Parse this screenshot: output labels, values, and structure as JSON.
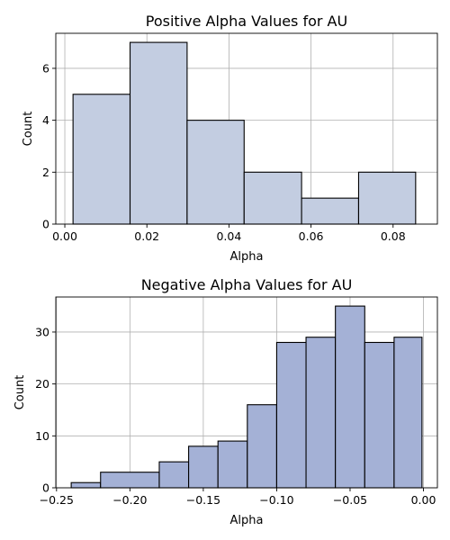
{
  "chart_data": [
    {
      "type": "histogram",
      "title": "Positive Alpha Values for AU",
      "xlabel": "Alpha",
      "ylabel": "Count",
      "xlim": [
        -0.0022,
        0.0908
      ],
      "ylim": [
        0,
        7.35
      ],
      "xticks": [
        "0.00",
        "0.02",
        "0.04",
        "0.06",
        "0.08"
      ],
      "xtick_values": [
        0.0,
        0.02,
        0.04,
        0.06,
        0.08
      ],
      "yticks": [
        "0",
        "2",
        "4",
        "6"
      ],
      "ytick_values": [
        0,
        2,
        4,
        6
      ],
      "grid": true,
      "bar_color": "#c3cde1",
      "edge_color": "#000000",
      "bins": [
        {
          "x0": 0.002,
          "x1": 0.0159,
          "count": 5
        },
        {
          "x0": 0.0159,
          "x1": 0.0298,
          "count": 7
        },
        {
          "x0": 0.0298,
          "x1": 0.0437,
          "count": 4
        },
        {
          "x0": 0.0437,
          "x1": 0.0577,
          "count": 2
        },
        {
          "x0": 0.0577,
          "x1": 0.0716,
          "count": 1
        },
        {
          "x0": 0.0716,
          "x1": 0.0855,
          "count": 2
        }
      ]
    },
    {
      "type": "histogram",
      "title": "Negative Alpha Values for AU",
      "xlabel": "Alpha",
      "ylabel": "Count",
      "xlim": [
        -0.2505,
        0.0095
      ],
      "ylim": [
        0,
        36.75
      ],
      "xticks": [
        "−0.25",
        "−0.20",
        "−0.15",
        "−0.10",
        "−0.05",
        "0.00"
      ],
      "xtick_values": [
        -0.25,
        -0.2,
        -0.15,
        -0.1,
        -0.05,
        0.0
      ],
      "yticks": [
        "0",
        "10",
        "20",
        "30"
      ],
      "ytick_values": [
        0,
        10,
        20,
        30
      ],
      "grid": true,
      "bar_color": "#a4b1d6",
      "edge_color": "#000000",
      "bins": [
        {
          "x0": -0.24,
          "x1": -0.22,
          "count": 1
        },
        {
          "x0": -0.22,
          "x1": -0.18,
          "count": 3
        },
        {
          "x0": -0.18,
          "x1": -0.16,
          "count": 5
        },
        {
          "x0": -0.16,
          "x1": -0.14,
          "count": 8
        },
        {
          "x0": -0.14,
          "x1": -0.12,
          "count": 9
        },
        {
          "x0": -0.12,
          "x1": -0.1,
          "count": 16
        },
        {
          "x0": -0.1,
          "x1": -0.08,
          "count": 28
        },
        {
          "x0": -0.08,
          "x1": -0.06,
          "count": 29
        },
        {
          "x0": -0.06,
          "x1": -0.04,
          "count": 35
        },
        {
          "x0": -0.04,
          "x1": -0.02,
          "count": 28
        },
        {
          "x0": -0.02,
          "x1": -0.001,
          "count": 29
        }
      ]
    }
  ]
}
